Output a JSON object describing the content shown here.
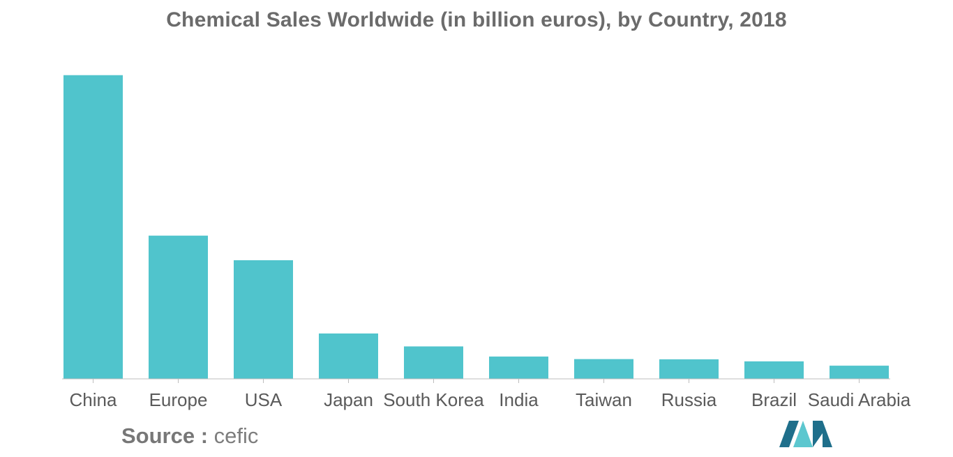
{
  "chart_data": {
    "type": "bar",
    "title": "Chemical Sales Worldwide (in billion euros), by Country, 2018",
    "categories": [
      "China",
      "Europe",
      "USA",
      "Japan",
      "South Korea",
      "India",
      "Taiwan",
      "Russia",
      "Brazil",
      "Saudi Arabia"
    ],
    "values": [
      1198,
      565,
      468,
      179,
      128,
      88,
      78,
      77,
      69,
      52
    ],
    "xlabel": "",
    "ylabel": "",
    "ylim": [
      0,
      1200
    ],
    "grid": false,
    "legend": "none",
    "colors": {
      "bar": "#50c4cc",
      "axis": "#bdbdbd",
      "tick_label": "#5a5a5a"
    }
  },
  "source": {
    "label": "Source :",
    "value": "cefic"
  },
  "logo": {
    "icon": "mordor-intelligence-logo-icon",
    "colors": {
      "dark": "#1f6f8b",
      "light": "#5cc7cf"
    }
  }
}
